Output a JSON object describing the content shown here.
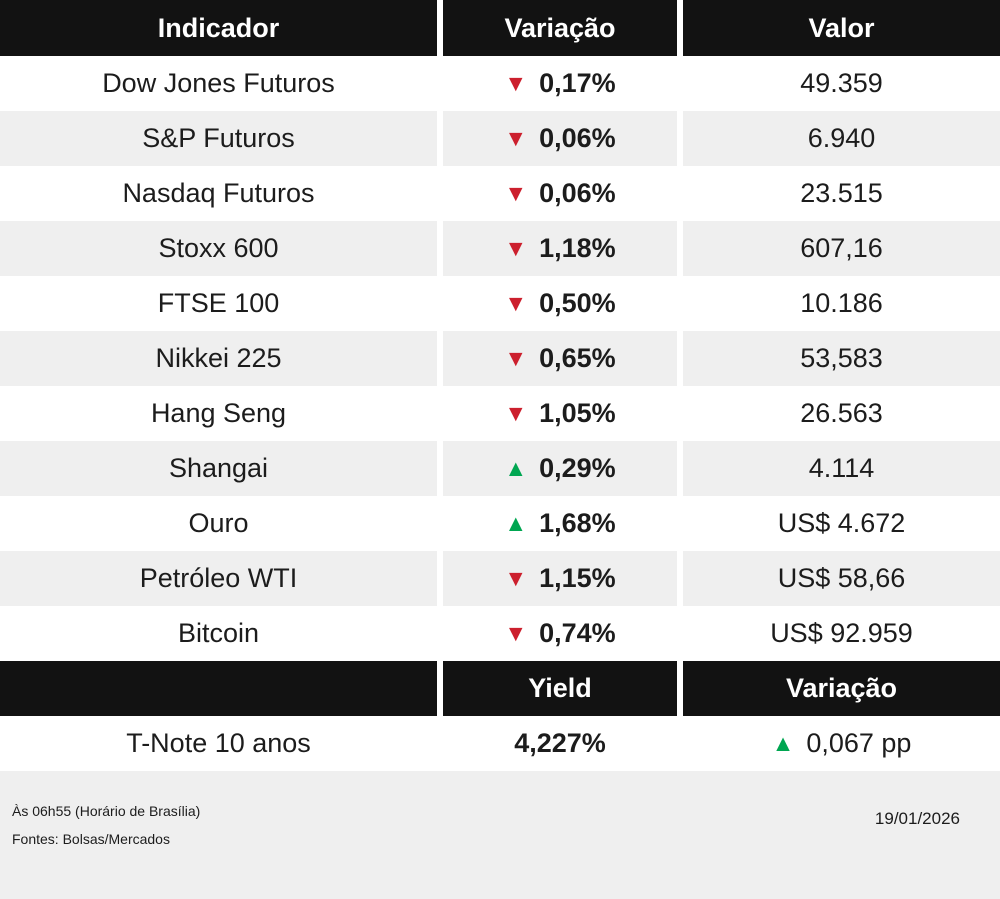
{
  "colors": {
    "header_bg": "#121212",
    "alt_row_bg": "#efefef",
    "footer_bg": "#efefef",
    "up": "#00a651",
    "down": "#cc1f2d"
  },
  "icons": {
    "up_arrow": "▲",
    "down_arrow": "▼"
  },
  "chart_data": {
    "type": "table",
    "title": "Indicadores de mercado",
    "columns": [
      "Indicador",
      "Variação",
      "Valor"
    ],
    "rows": [
      {
        "indicator": "Dow Jones Futuros",
        "direction": "down",
        "variation_pct": -0.17,
        "variation_label": "0,17%",
        "value": "49.359"
      },
      {
        "indicator": "S&P Futuros",
        "direction": "down",
        "variation_pct": -0.06,
        "variation_label": "0,06%",
        "value": "6.940"
      },
      {
        "indicator": "Nasdaq Futuros",
        "direction": "down",
        "variation_pct": -0.06,
        "variation_label": "0,06%",
        "value": "23.515"
      },
      {
        "indicator": "Stoxx 600",
        "direction": "down",
        "variation_pct": -1.18,
        "variation_label": "1,18%",
        "value": "607,16"
      },
      {
        "indicator": "FTSE 100",
        "direction": "down",
        "variation_pct": -0.5,
        "variation_label": "0,50%",
        "value": "10.186"
      },
      {
        "indicator": "Nikkei 225",
        "direction": "down",
        "variation_pct": -0.65,
        "variation_label": "0,65%",
        "value": "53,583"
      },
      {
        "indicator": "Hang Seng",
        "direction": "down",
        "variation_pct": -1.05,
        "variation_label": "1,05%",
        "value": "26.563"
      },
      {
        "indicator": "Shangai",
        "direction": "up",
        "variation_pct": 0.29,
        "variation_label": "0,29%",
        "value": "4.114"
      },
      {
        "indicator": "Ouro",
        "direction": "up",
        "variation_pct": 1.68,
        "variation_label": "1,68%",
        "value": "US$ 4.672"
      },
      {
        "indicator": "Petróleo WTI",
        "direction": "down",
        "variation_pct": -1.15,
        "variation_label": "1,15%",
        "value": "US$ 58,66"
      },
      {
        "indicator": "Bitcoin",
        "direction": "down",
        "variation_pct": -0.74,
        "variation_label": "0,74%",
        "value": "US$ 92.959"
      }
    ],
    "yield_section": {
      "columns": [
        "",
        "Yield",
        "Variação"
      ],
      "rows": [
        {
          "indicator": "T-Note 10 anos",
          "yield": "4,227%",
          "direction": "up",
          "variation_label": "0,067 pp"
        }
      ]
    }
  },
  "footer": {
    "time_note": "Às 06h55 (Horário  de Brasília)",
    "sources": "Fontes: Bolsas/Mercados",
    "date": "19/01/2026"
  }
}
